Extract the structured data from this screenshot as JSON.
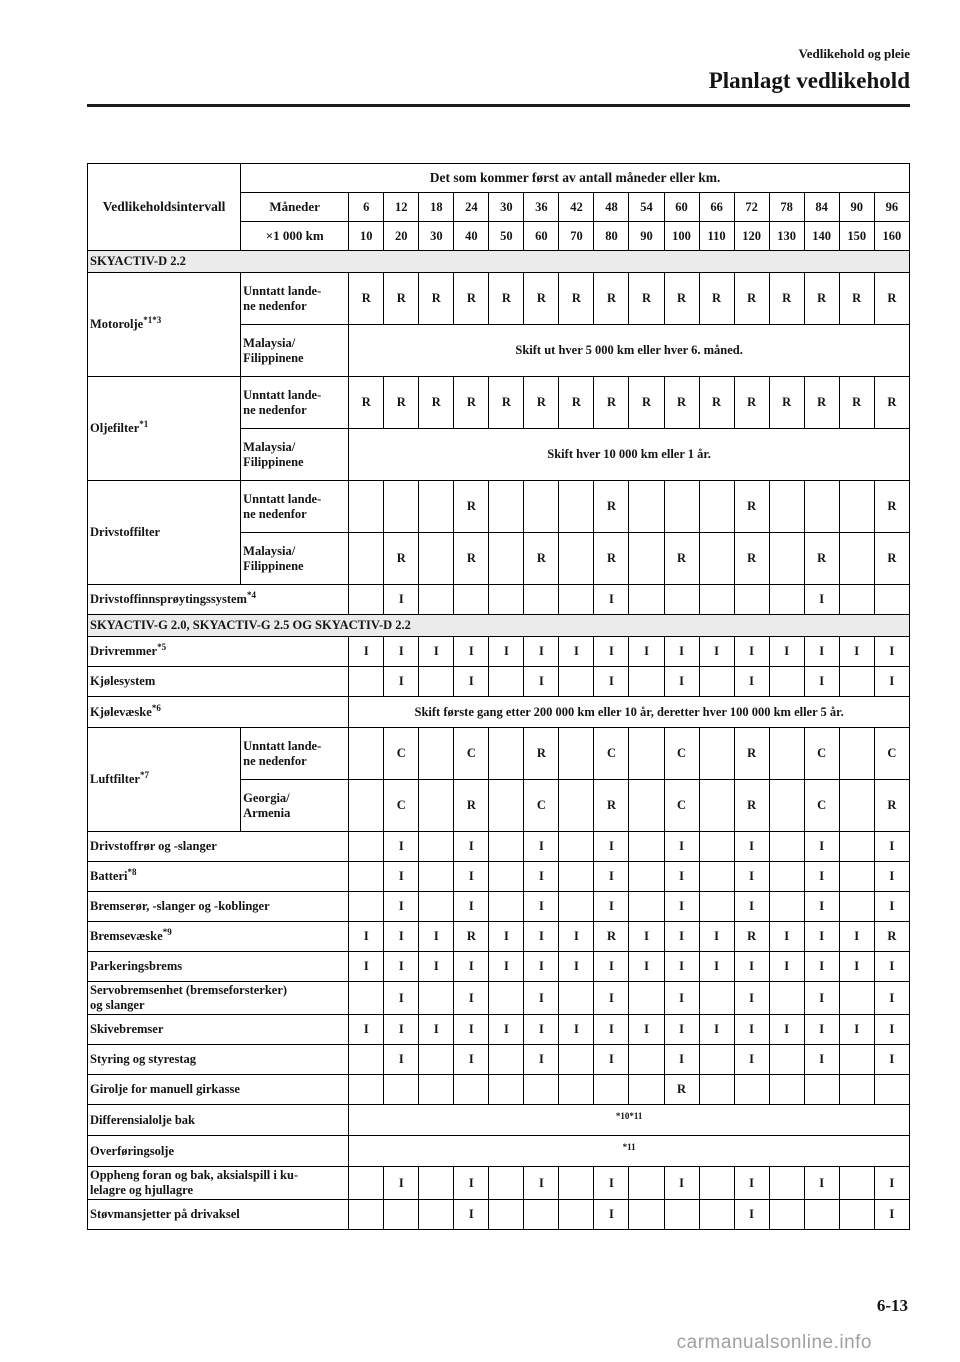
{
  "page": {
    "breadcrumb": "Vedlikehold og pleie",
    "title": "Planlagt vedlikehold",
    "page_number": "6-13",
    "watermark": "carmanualsonline.info"
  },
  "table": {
    "interval_header": "Vedlikeholdsintervall",
    "span_header": "Det som kommer først av antall måneder eller km.",
    "months_label": "Måneder",
    "months": [
      "6",
      "12",
      "18",
      "24",
      "30",
      "36",
      "42",
      "48",
      "54",
      "60",
      "66",
      "72",
      "78",
      "84",
      "90",
      "96"
    ],
    "km_label": "×1 000 km",
    "km": [
      "10",
      "20",
      "30",
      "40",
      "50",
      "60",
      "70",
      "80",
      "90",
      "100",
      "110",
      "120",
      "130",
      "140",
      "150",
      "160"
    ],
    "legend_symbols": [
      "R",
      "I",
      "C"
    ],
    "rows": [
      {
        "type": "section",
        "label": "SKYACTIV-D 2.2"
      },
      {
        "type": "group",
        "label": "Motorolje*1*3",
        "subrows": [
          {
            "label": "Unntatt lande-\nne nedenfor",
            "cells": [
              "R",
              "R",
              "R",
              "R",
              "R",
              "R",
              "R",
              "R",
              "R",
              "R",
              "R",
              "R",
              "R",
              "R",
              "R",
              "R"
            ]
          },
          {
            "label": "Malaysia/\nFilippinene",
            "text": "Skift ut hver 5 000 km eller hver 6. måned."
          }
        ]
      },
      {
        "type": "group",
        "label": "Oljefilter*1",
        "subrows": [
          {
            "label": "Unntatt lande-\nne nedenfor",
            "cells": [
              "R",
              "R",
              "R",
              "R",
              "R",
              "R",
              "R",
              "R",
              "R",
              "R",
              "R",
              "R",
              "R",
              "R",
              "R",
              "R"
            ]
          },
          {
            "label": "Malaysia/\nFilippinene",
            "text": "Skift hver 10 000 km eller 1 år."
          }
        ]
      },
      {
        "type": "group",
        "label": "Drivstoffilter",
        "subrows": [
          {
            "label": "Unntatt lande-\nne nedenfor",
            "cells": [
              "",
              "",
              "",
              "R",
              "",
              "",
              "",
              "R",
              "",
              "",
              "",
              "R",
              "",
              "",
              "",
              "R"
            ]
          },
          {
            "label": "Malaysia/\nFilippinene",
            "cells": [
              "",
              "R",
              "",
              "R",
              "",
              "R",
              "",
              "R",
              "",
              "R",
              "",
              "R",
              "",
              "R",
              "",
              "R"
            ]
          }
        ]
      },
      {
        "type": "simple",
        "label": "Drivstoffinnsprøytingssystem*4",
        "cells": [
          "",
          "I",
          "",
          "",
          "",
          "",
          "",
          "I",
          "",
          "",
          "",
          "",
          "",
          "I",
          "",
          ""
        ]
      },
      {
        "type": "section",
        "label": "SKYACTIV-G 2.0, SKYACTIV-G 2.5 OG SKYACTIV-D 2.2"
      },
      {
        "type": "simple",
        "label": "Drivremmer*5",
        "cells": [
          "I",
          "I",
          "I",
          "I",
          "I",
          "I",
          "I",
          "I",
          "I",
          "I",
          "I",
          "I",
          "I",
          "I",
          "I",
          "I"
        ]
      },
      {
        "type": "simple",
        "label": "Kjølesystem",
        "cells": [
          "",
          "I",
          "",
          "I",
          "",
          "I",
          "",
          "I",
          "",
          "I",
          "",
          "I",
          "",
          "I",
          "",
          "I"
        ]
      },
      {
        "type": "text",
        "label": "Kjølevæske*6",
        "text": "Skift første gang etter 200 000 km eller 10 år, deretter hver 100 000 km eller 5 år."
      },
      {
        "type": "group",
        "label": "Luftfilter*7",
        "subrows": [
          {
            "label": "Unntatt lande-\nne nedenfor",
            "cells": [
              "",
              "C",
              "",
              "C",
              "",
              "R",
              "",
              "C",
              "",
              "C",
              "",
              "R",
              "",
              "C",
              "",
              "C"
            ]
          },
          {
            "label": "Georgia/\nArmenia",
            "cells": [
              "",
              "C",
              "",
              "R",
              "",
              "C",
              "",
              "R",
              "",
              "C",
              "",
              "R",
              "",
              "C",
              "",
              "R"
            ]
          }
        ]
      },
      {
        "type": "simple",
        "label": "Drivstoffrør og -slanger",
        "cells": [
          "",
          "I",
          "",
          "I",
          "",
          "I",
          "",
          "I",
          "",
          "I",
          "",
          "I",
          "",
          "I",
          "",
          "I"
        ]
      },
      {
        "type": "simple",
        "label": "Batteri*8",
        "cells": [
          "",
          "I",
          "",
          "I",
          "",
          "I",
          "",
          "I",
          "",
          "I",
          "",
          "I",
          "",
          "I",
          "",
          "I"
        ]
      },
      {
        "type": "simple",
        "label": "Bremserør, -slanger og -koblinger",
        "cells": [
          "",
          "I",
          "",
          "I",
          "",
          "I",
          "",
          "I",
          "",
          "I",
          "",
          "I",
          "",
          "I",
          "",
          "I"
        ]
      },
      {
        "type": "simple",
        "label": "Bremsevæske*9",
        "cells": [
          "I",
          "I",
          "I",
          "R",
          "I",
          "I",
          "I",
          "R",
          "I",
          "I",
          "I",
          "R",
          "I",
          "I",
          "I",
          "R"
        ]
      },
      {
        "type": "simple",
        "label": "Parkeringsbrems",
        "cells": [
          "I",
          "I",
          "I",
          "I",
          "I",
          "I",
          "I",
          "I",
          "I",
          "I",
          "I",
          "I",
          "I",
          "I",
          "I",
          "I"
        ]
      },
      {
        "type": "simple",
        "label": "Servobremsenhet (bremseforsterker)\nog slanger",
        "cells": [
          "",
          "I",
          "",
          "I",
          "",
          "I",
          "",
          "I",
          "",
          "I",
          "",
          "I",
          "",
          "I",
          "",
          "I"
        ]
      },
      {
        "type": "simple",
        "label": "Skivebremser",
        "cells": [
          "I",
          "I",
          "I",
          "I",
          "I",
          "I",
          "I",
          "I",
          "I",
          "I",
          "I",
          "I",
          "I",
          "I",
          "I",
          "I"
        ]
      },
      {
        "type": "simple",
        "label": "Styring og styrestag",
        "cells": [
          "",
          "I",
          "",
          "I",
          "",
          "I",
          "",
          "I",
          "",
          "I",
          "",
          "I",
          "",
          "I",
          "",
          "I"
        ]
      },
      {
        "type": "simple",
        "label": "Girolje for manuell girkasse",
        "cells": [
          "",
          "",
          "",
          "",
          "",
          "",
          "",
          "",
          "",
          "R",
          "",
          "",
          "",
          "",
          "",
          ""
        ]
      },
      {
        "type": "text",
        "label": "Differensialolje bak",
        "text": "*10*11"
      },
      {
        "type": "text",
        "label": "Overføringsolje",
        "text": "*11"
      },
      {
        "type": "simple",
        "label": "Oppheng foran og bak, aksialspill i ku-\nlelagre og hjullagre",
        "cells": [
          "",
          "I",
          "",
          "I",
          "",
          "I",
          "",
          "I",
          "",
          "I",
          "",
          "I",
          "",
          "I",
          "",
          "I"
        ]
      },
      {
        "type": "simple",
        "label": "Støvmansjetter på drivaksel",
        "cells": [
          "",
          "",
          "",
          "I",
          "",
          "",
          "",
          "I",
          "",
          "",
          "",
          "I",
          "",
          "",
          "",
          "I"
        ]
      }
    ]
  }
}
